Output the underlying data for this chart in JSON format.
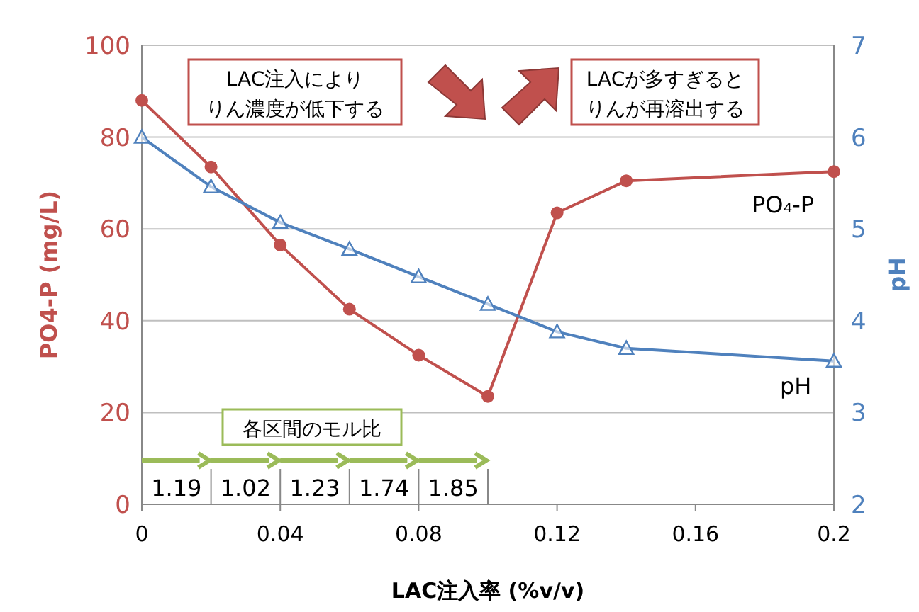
{
  "chart_data": {
    "type": "line",
    "xlabel": "LAC注入率 (%v/v)",
    "ylabel": "PO4-P (mg/L)",
    "y2label": "pH",
    "xlim": [
      0,
      0.2
    ],
    "xticks": [
      0,
      0.04,
      0.08,
      0.12,
      0.16,
      0.2
    ],
    "ylim": [
      0,
      100
    ],
    "yticks": [
      0,
      20,
      40,
      60,
      80,
      100
    ],
    "y2lim": [
      2,
      7
    ],
    "y2ticks": [
      2,
      3,
      4,
      5,
      6,
      7
    ],
    "grid": "y",
    "legend": false,
    "series": [
      {
        "name": "PO₄-P",
        "color": "#c0504d",
        "marker": "circle",
        "x": [
          0,
          0.02,
          0.04,
          0.06,
          0.08,
          0.1,
          0.12,
          0.14,
          0.2
        ],
        "values": [
          88,
          73.5,
          56.5,
          42.5,
          32.5,
          23.5,
          63.5,
          70.5,
          72.5
        ]
      },
      {
        "name": "pH",
        "color": "#4f81bd",
        "marker": "triangle",
        "axis": "y2",
        "x": [
          0,
          0.02,
          0.04,
          0.06,
          0.08,
          0.1,
          0.12,
          0.14,
          0.2
        ],
        "values": [
          6.0,
          5.46,
          5.07,
          4.78,
          4.48,
          4.18,
          3.88,
          3.7,
          3.56
        ]
      }
    ],
    "annotations": [
      "LAC注入により",
      "りん濃度が低下する",
      "LACが多すぎると",
      "りんが再溶出する",
      "各区間のモル比",
      "1.19",
      "1.02",
      "1.23",
      "1.74",
      "1.85"
    ]
  }
}
